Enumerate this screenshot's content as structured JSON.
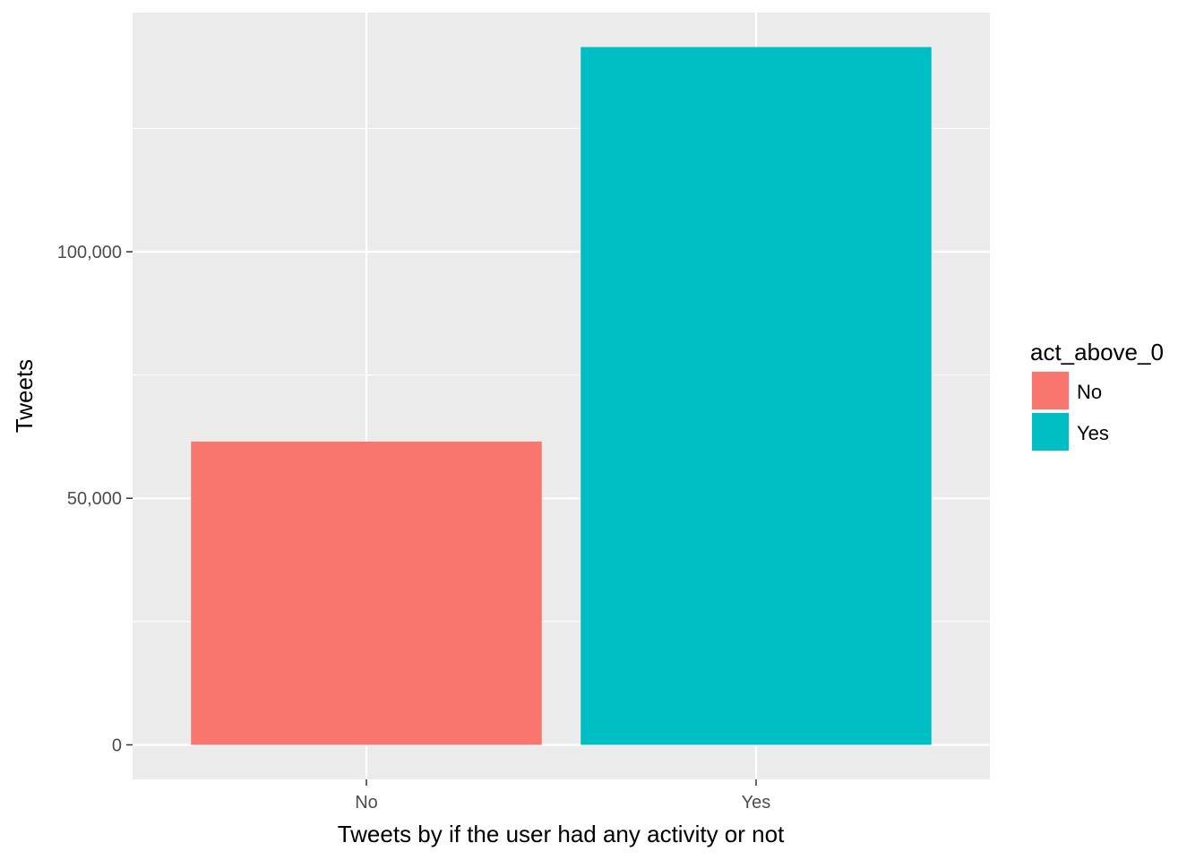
{
  "chart_data": {
    "type": "bar",
    "categories": [
      "No",
      "Yes"
    ],
    "values": [
      61500,
      141500
    ],
    "colors": [
      "#F8766D",
      "#00BFC4"
    ],
    "title": "",
    "xlabel": "Tweets by if the user had any activity or not",
    "ylabel": "Tweets",
    "ylim": [
      -7000,
      148500
    ],
    "yticks": [
      0,
      50000,
      100000
    ],
    "ytick_labels": [
      "0",
      "50,000",
      "100,000"
    ],
    "grid": true,
    "panel_background": "#EBEBEB",
    "grid_color": "#FFFFFF",
    "legend": {
      "title": "act_above_0",
      "position": "right",
      "entries": [
        {
          "label": "No",
          "color": "#F8766D"
        },
        {
          "label": "Yes",
          "color": "#00BFC4"
        }
      ]
    }
  }
}
